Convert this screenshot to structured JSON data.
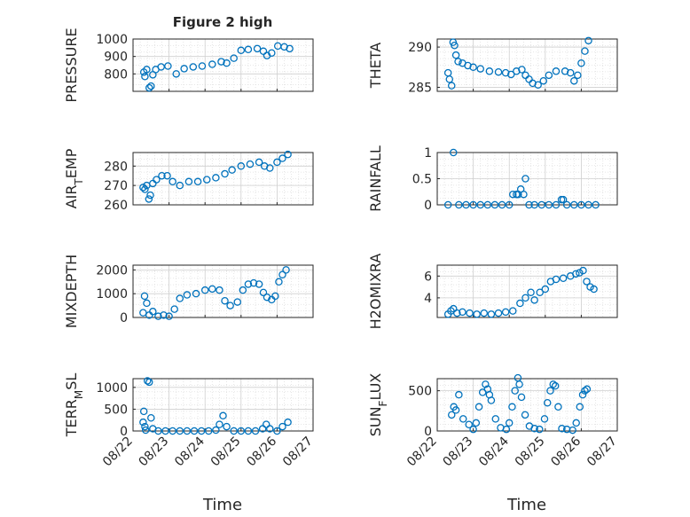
{
  "figure": {
    "title": "Figure 2 high",
    "xlabel": "Time"
  },
  "colors": {
    "marker": "#0072BD",
    "axis": "#262626",
    "grid": "#DFDFDF",
    "background": "#ffffff"
  },
  "date_ticks": [
    "08/22",
    "08/23",
    "08/24",
    "08/25",
    "08/26",
    "08/27"
  ],
  "chart_data": [
    {
      "type": "scatter",
      "ylabel": "PRESSURE",
      "xlim": [
        0,
        5
      ],
      "ylim": [
        700,
        1000
      ],
      "yticks": [
        800,
        900,
        1000
      ],
      "x": [
        0.3,
        0.33,
        0.38,
        0.45,
        0.5,
        0.55,
        0.63,
        0.78,
        0.97,
        1.2,
        1.42,
        1.67,
        1.92,
        2.2,
        2.45,
        2.6,
        2.8,
        3.0,
        3.2,
        3.45,
        3.62,
        3.72,
        3.85,
        4.02,
        4.2,
        4.35
      ],
      "y": [
        810,
        785,
        825,
        720,
        730,
        795,
        825,
        840,
        845,
        800,
        830,
        840,
        845,
        855,
        870,
        862,
        890,
        935,
        940,
        945,
        930,
        905,
        920,
        960,
        955,
        945
      ]
    },
    {
      "type": "scatter",
      "ylabel": "THETA",
      "xlim": [
        0,
        5
      ],
      "ylim": [
        284.5,
        291
      ],
      "yticks": [
        285,
        290
      ],
      "x": [
        0.3,
        0.34,
        0.4,
        0.44,
        0.48,
        0.52,
        0.58,
        0.7,
        0.85,
        1.0,
        1.2,
        1.45,
        1.7,
        1.9,
        2.05,
        2.2,
        2.35,
        2.45,
        2.55,
        2.65,
        2.8,
        2.95,
        3.1,
        3.3,
        3.55,
        3.7,
        3.8,
        3.9,
        4.0,
        4.1,
        4.2
      ],
      "y": [
        286.8,
        286.0,
        285.2,
        290.6,
        290.2,
        289.0,
        288.2,
        288.0,
        287.7,
        287.5,
        287.3,
        287.0,
        286.9,
        286.8,
        286.6,
        287.0,
        287.2,
        286.5,
        286.0,
        285.5,
        285.3,
        285.8,
        286.5,
        287.0,
        287.0,
        286.8,
        285.8,
        286.5,
        288.0,
        289.5,
        290.8
      ]
    },
    {
      "type": "scatter",
      "ylabel": "AIR_TEMP",
      "xlim": [
        0,
        5
      ],
      "ylim": [
        260,
        287
      ],
      "yticks": [
        260,
        270,
        280
      ],
      "x": [
        0.28,
        0.33,
        0.38,
        0.44,
        0.48,
        0.55,
        0.65,
        0.8,
        0.95,
        1.1,
        1.3,
        1.55,
        1.8,
        2.05,
        2.3,
        2.55,
        2.75,
        3.0,
        3.25,
        3.5,
        3.65,
        3.8,
        4.0,
        4.15,
        4.3
      ],
      "y": [
        269,
        268,
        270,
        263,
        265,
        271,
        273,
        275,
        275,
        272,
        270,
        272,
        272,
        273,
        274,
        276,
        278,
        280,
        281,
        282,
        280,
        279,
        282,
        284,
        286
      ]
    },
    {
      "type": "scatter",
      "ylabel": "RAINFALL",
      "xlim": [
        0,
        5
      ],
      "ylim": [
        0,
        1
      ],
      "yticks": [
        0,
        0.5,
        1
      ],
      "x": [
        0.3,
        0.45,
        0.6,
        0.8,
        1.0,
        1.2,
        1.4,
        1.6,
        1.8,
        2.0,
        2.1,
        2.2,
        2.25,
        2.32,
        2.4,
        2.45,
        2.55,
        2.7,
        2.9,
        3.1,
        3.3,
        3.45,
        3.5,
        3.6,
        3.8,
        4.0,
        4.2,
        4.4
      ],
      "y": [
        0,
        1.0,
        0,
        0,
        0,
        0,
        0,
        0,
        0,
        0,
        0.2,
        0.2,
        0.2,
        0.3,
        0.2,
        0.5,
        0,
        0,
        0,
        0,
        0,
        0.1,
        0.1,
        0,
        0,
        0,
        0,
        0
      ]
    },
    {
      "type": "scatter",
      "ylabel": "MIXDEPTH",
      "xlim": [
        0,
        5
      ],
      "ylim": [
        0,
        2200
      ],
      "yticks": [
        0,
        1000,
        2000
      ],
      "x": [
        0.28,
        0.32,
        0.38,
        0.45,
        0.55,
        0.7,
        0.85,
        1.0,
        1.15,
        1.3,
        1.5,
        1.75,
        2.0,
        2.2,
        2.4,
        2.55,
        2.7,
        2.9,
        3.05,
        3.2,
        3.35,
        3.5,
        3.62,
        3.72,
        3.85,
        3.95,
        4.05,
        4.15,
        4.25
      ],
      "y": [
        200,
        900,
        600,
        100,
        250,
        50,
        100,
        50,
        350,
        800,
        950,
        1000,
        1150,
        1200,
        1150,
        700,
        500,
        650,
        1150,
        1400,
        1450,
        1400,
        1050,
        850,
        750,
        900,
        1500,
        1800,
        2000
      ]
    },
    {
      "type": "scatter",
      "ylabel": "H2OMIXRA",
      "xlim": [
        0,
        5
      ],
      "ylim": [
        2.2,
        7
      ],
      "yticks": [
        4,
        6
      ],
      "x": [
        0.3,
        0.38,
        0.45,
        0.55,
        0.7,
        0.9,
        1.1,
        1.3,
        1.5,
        1.7,
        1.9,
        2.1,
        2.3,
        2.45,
        2.6,
        2.7,
        2.85,
        3.0,
        3.15,
        3.3,
        3.5,
        3.7,
        3.85,
        3.95,
        4.05,
        4.15,
        4.25,
        4.35
      ],
      "y": [
        2.5,
        2.8,
        3.0,
        2.6,
        2.7,
        2.6,
        2.5,
        2.6,
        2.5,
        2.6,
        2.7,
        2.8,
        3.5,
        4.0,
        4.5,
        3.8,
        4.5,
        4.8,
        5.5,
        5.7,
        5.8,
        6.0,
        6.2,
        6.3,
        6.5,
        5.5,
        5.0,
        4.8
      ]
    },
    {
      "type": "scatter",
      "ylabel": "TERR_MSL",
      "xlim": [
        0,
        5
      ],
      "ylim": [
        0,
        1200
      ],
      "yticks": [
        0,
        500,
        1000
      ],
      "x": [
        0.28,
        0.3,
        0.33,
        0.35,
        0.4,
        0.45,
        0.5,
        0.55,
        0.7,
        0.9,
        1.1,
        1.3,
        1.5,
        1.7,
        1.9,
        2.1,
        2.3,
        2.4,
        2.5,
        2.6,
        2.8,
        3.0,
        3.2,
        3.4,
        3.6,
        3.7,
        3.8,
        4.0,
        4.15,
        4.3
      ],
      "y": [
        200,
        450,
        100,
        20,
        1150,
        1120,
        300,
        50,
        0,
        0,
        0,
        0,
        0,
        0,
        0,
        0,
        20,
        150,
        350,
        100,
        0,
        0,
        0,
        0,
        50,
        150,
        50,
        0,
        100,
        200
      ]
    },
    {
      "type": "scatter",
      "ylabel": "SUN_FLUX",
      "xlim": [
        0,
        5
      ],
      "ylim": [
        0,
        650
      ],
      "yticks": [
        0,
        500
      ],
      "x": [
        0.4,
        0.46,
        0.52,
        0.6,
        0.72,
        0.88,
        1.0,
        1.08,
        1.16,
        1.26,
        1.34,
        1.4,
        1.45,
        1.5,
        1.62,
        1.76,
        1.92,
        2.0,
        2.08,
        2.16,
        2.24,
        2.28,
        2.34,
        2.44,
        2.56,
        2.7,
        2.84,
        2.98,
        3.06,
        3.14,
        3.22,
        3.28,
        3.36,
        3.46,
        3.6,
        3.76,
        3.86,
        3.96,
        4.04,
        4.1,
        4.16
      ],
      "y": [
        200,
        300,
        260,
        450,
        150,
        80,
        20,
        100,
        300,
        480,
        580,
        520,
        450,
        380,
        150,
        40,
        20,
        100,
        300,
        500,
        660,
        580,
        420,
        200,
        60,
        30,
        20,
        150,
        350,
        500,
        580,
        560,
        300,
        30,
        20,
        10,
        100,
        300,
        450,
        500,
        520
      ]
    }
  ]
}
